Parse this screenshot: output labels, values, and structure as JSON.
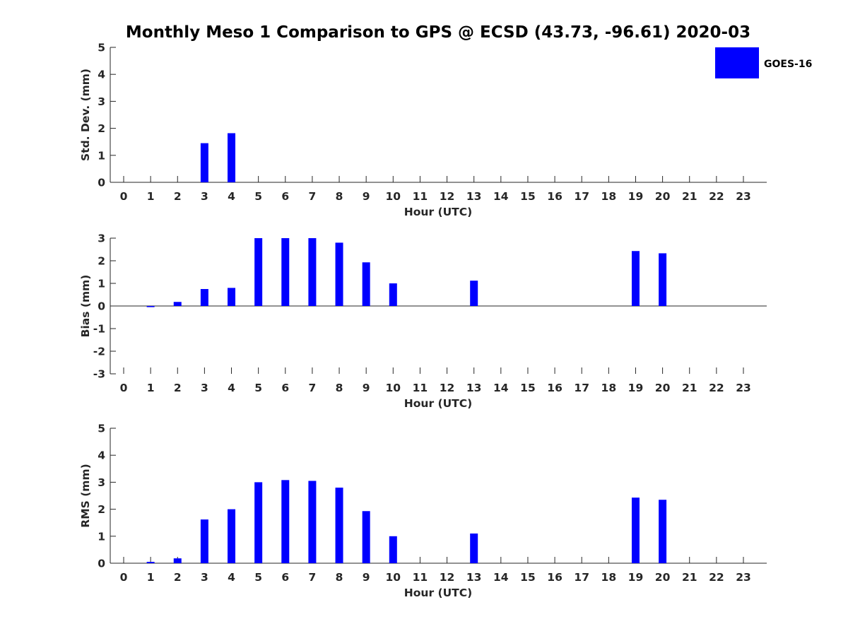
{
  "chart_data": {
    "title": "Monthly Meso 1 Comparison to GPS @ ECSD (43.73, -96.61) 2020-03",
    "legend": {
      "label": "GOES-16",
      "color": "#0000ff",
      "placement": "top-right"
    },
    "panels": [
      {
        "id": "std",
        "type": "bar",
        "xlabel": "Hour (UTC)",
        "ylabel": "Std. Dev. (mm)",
        "ylim": [
          0,
          5
        ],
        "yticks": [
          "0",
          "1",
          "2",
          "3",
          "4",
          "5"
        ],
        "categories": [
          "0",
          "1",
          "2",
          "3",
          "4",
          "5",
          "6",
          "7",
          "8",
          "9",
          "10",
          "11",
          "12",
          "13",
          "14",
          "15",
          "16",
          "17",
          "18",
          "19",
          "20",
          "21",
          "22",
          "23"
        ],
        "values": [
          null,
          null,
          null,
          1.45,
          1.82,
          null,
          null,
          null,
          null,
          null,
          null,
          null,
          null,
          null,
          null,
          null,
          null,
          null,
          null,
          null,
          null,
          null,
          null,
          null
        ]
      },
      {
        "id": "bias",
        "type": "bar",
        "xlabel": "Hour (UTC)",
        "ylabel": "Bias (mm)",
        "ylim": [
          -3,
          3
        ],
        "yticks": [
          "-3",
          "-2",
          "-1",
          "0",
          "1",
          "2",
          "3"
        ],
        "categories": [
          "0",
          "1",
          "2",
          "3",
          "4",
          "5",
          "6",
          "7",
          "8",
          "9",
          "10",
          "11",
          "12",
          "13",
          "14",
          "15",
          "16",
          "17",
          "18",
          "19",
          "20",
          "21",
          "22",
          "23"
        ],
        "values": [
          null,
          -0.05,
          0.18,
          0.75,
          0.8,
          3.0,
          3.0,
          3.0,
          2.8,
          1.93,
          1.0,
          null,
          null,
          1.12,
          null,
          null,
          null,
          null,
          null,
          2.43,
          2.33,
          null,
          null,
          null
        ]
      },
      {
        "id": "rms",
        "type": "bar",
        "xlabel": "Hour (UTC)",
        "ylabel": "RMS (mm)",
        "ylim": [
          0,
          5
        ],
        "yticks": [
          "0",
          "1",
          "2",
          "3",
          "4",
          "5"
        ],
        "categories": [
          "0",
          "1",
          "2",
          "3",
          "4",
          "5",
          "6",
          "7",
          "8",
          "9",
          "10",
          "11",
          "12",
          "13",
          "14",
          "15",
          "16",
          "17",
          "18",
          "19",
          "20",
          "21",
          "22",
          "23"
        ],
        "values": [
          null,
          0.05,
          0.18,
          1.62,
          2.0,
          3.0,
          3.08,
          3.05,
          2.8,
          1.93,
          1.0,
          null,
          null,
          1.1,
          null,
          null,
          null,
          null,
          null,
          2.43,
          2.35,
          null,
          null,
          null
        ]
      }
    ]
  }
}
